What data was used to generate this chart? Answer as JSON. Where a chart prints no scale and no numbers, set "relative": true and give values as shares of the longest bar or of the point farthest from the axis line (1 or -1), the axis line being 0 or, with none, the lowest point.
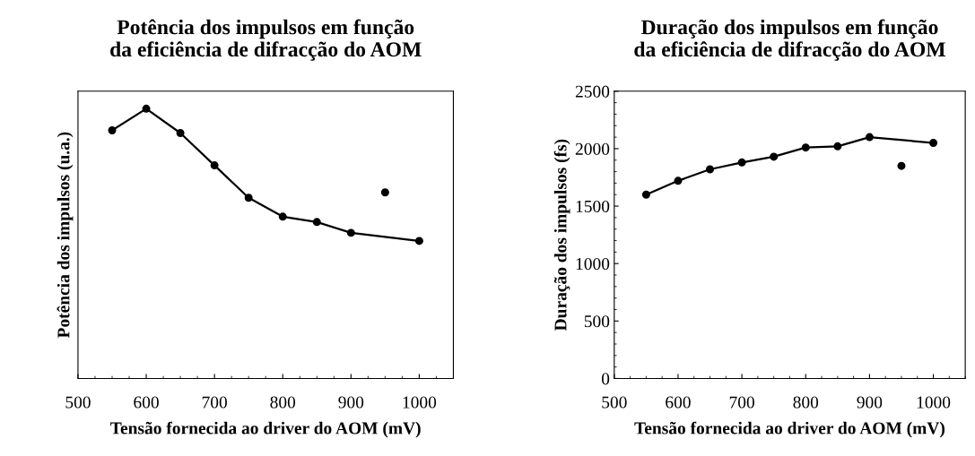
{
  "chart_data": [
    {
      "type": "scatter",
      "title": "Potência dos impulsos em função\nda eficiência de difracção do AOM",
      "xlabel": "Tensão fornecida ao driver do AOM (mV)",
      "ylabel": "Potência dos impulsos (u.a.)",
      "relative": true,
      "xlim": [
        500,
        1050
      ],
      "xticks": [
        500,
        600,
        700,
        800,
        900,
        1000
      ],
      "marker": "circle",
      "tick_labels": "x",
      "series": [
        {
          "color": "#000000",
          "x": [
            550,
            600,
            650,
            700,
            750,
            800,
            850,
            900,
            950,
            1000
          ],
          "values": [
            0.92,
            1,
            0.91,
            0.79,
            0.67,
            0.6,
            0.58,
            0.54,
            0.69,
            0.51
          ]
        },
        {
          "type": "line",
          "color": "#000000",
          "marker": "none",
          "x": [
            550,
            600,
            650,
            700,
            750,
            800,
            850,
            900,
            1000
          ],
          "values": [
            0.92,
            1,
            0.91,
            0.79,
            0.67,
            0.6,
            0.58,
            0.54,
            0.51
          ]
        }
      ]
    },
    {
      "type": "scatter",
      "title": "Duração dos impulsos em função\nda eficiência de difracção do AOM",
      "xlabel": "Tensão fornecida ao driver do AOM (mV)",
      "ylabel": "Duração dos impulsos (fs)",
      "xlim": [
        500,
        1050
      ],
      "xticks": [
        500,
        600,
        700,
        800,
        900,
        1000
      ],
      "ylim": [
        0,
        2500
      ],
      "yticks": [
        0,
        500,
        1000,
        1500,
        2000,
        2500
      ],
      "marker": "circle",
      "series": [
        {
          "color": "#000000",
          "x": [
            550,
            600,
            650,
            700,
            750,
            800,
            850,
            900,
            950,
            1000
          ],
          "values": [
            1600,
            1720,
            1820,
            1880,
            1930,
            2010,
            2020,
            2100,
            1850,
            2050
          ]
        },
        {
          "type": "line",
          "color": "#000000",
          "marker": "none",
          "x": [
            550,
            600,
            650,
            700,
            750,
            800,
            850,
            900,
            1000
          ],
          "values": [
            1600,
            1720,
            1820,
            1880,
            1930,
            2010,
            2020,
            2100,
            2050
          ]
        }
      ]
    }
  ]
}
